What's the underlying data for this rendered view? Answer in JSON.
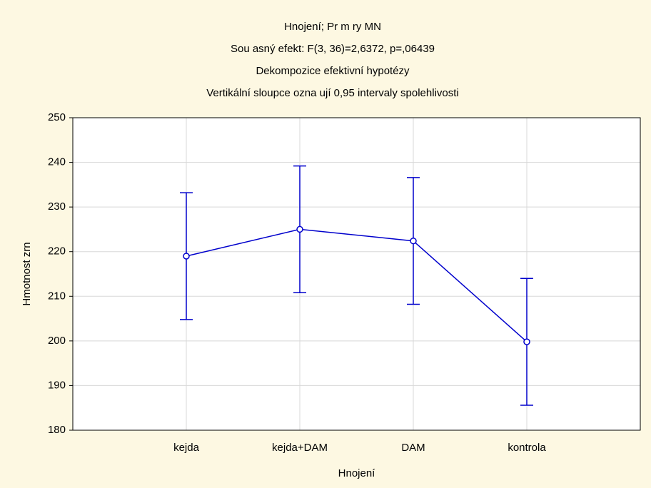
{
  "chart_data": {
    "type": "line",
    "titles": [
      "Hnojení; Pr  m  ry MN",
      "Sou  asný efekt: F(3, 36)=2,6372, p=,06439",
      "Dekompozice efektivní hypotézy",
      "Vertikální sloupce ozna  ují 0,95 intervaly spolehlivosti"
    ],
    "x_label": "Hnojení",
    "y_label": "Hmotnost zrn",
    "categories": [
      "kejda",
      "kejda+DAM",
      "DAM",
      "kontrola"
    ],
    "values": [
      219.0,
      225.0,
      222.4,
      199.8
    ],
    "errors": [
      14.2,
      14.2,
      14.2,
      14.2
    ],
    "color": "#0000cc",
    "ylim": [
      180,
      250
    ],
    "yticks": [
      180,
      190,
      200,
      210,
      220,
      230,
      240,
      250
    ],
    "grid": true
  }
}
